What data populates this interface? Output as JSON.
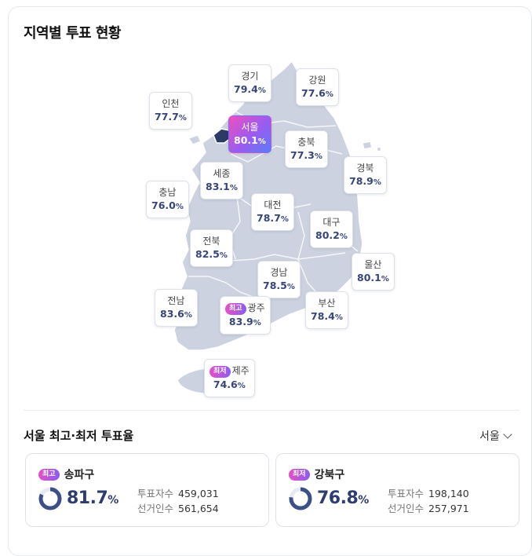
{
  "title": "지역별 투표 현황",
  "regions": [
    {
      "name": "경기",
      "value": "79.4",
      "badge": ""
    },
    {
      "name": "강원",
      "value": "77.6",
      "badge": ""
    },
    {
      "name": "인천",
      "value": "77.7",
      "badge": ""
    },
    {
      "name": "서울",
      "value": "80.1",
      "badge": ""
    },
    {
      "name": "충북",
      "value": "77.3",
      "badge": ""
    },
    {
      "name": "경북",
      "value": "78.9",
      "badge": ""
    },
    {
      "name": "세종",
      "value": "83.1",
      "badge": ""
    },
    {
      "name": "충남",
      "value": "76.0",
      "badge": ""
    },
    {
      "name": "대전",
      "value": "78.7",
      "badge": ""
    },
    {
      "name": "대구",
      "value": "80.2",
      "badge": ""
    },
    {
      "name": "전북",
      "value": "82.5",
      "badge": ""
    },
    {
      "name": "울산",
      "value": "80.1",
      "badge": ""
    },
    {
      "name": "경남",
      "value": "78.5",
      "badge": ""
    },
    {
      "name": "전남",
      "value": "83.6",
      "badge": ""
    },
    {
      "name": "광주",
      "value": "83.9",
      "badge": "최고"
    },
    {
      "name": "부산",
      "value": "78.4",
      "badge": ""
    },
    {
      "name": "제주",
      "value": "74.6",
      "badge": "최저"
    }
  ],
  "selected_region": "서울",
  "percent_unit": "%",
  "section": {
    "title": "서울 최고·최저 투표율",
    "dropdown_value": "서울"
  },
  "cards": [
    {
      "badge": "최고",
      "district": "송파구",
      "rate": "81.7",
      "rate_fraction": 0.817,
      "voters_label": "투표자수",
      "voters": "459,031",
      "electors_label": "선거인수",
      "electors": "561,654"
    },
    {
      "badge": "최저",
      "district": "강북구",
      "rate": "76.8",
      "rate_fraction": 0.768,
      "voters_label": "투표자수",
      "voters": "198,140",
      "electors_label": "선거인수",
      "electors": "257,971"
    }
  ],
  "colors": {
    "map_fill": "#ccd2df",
    "map_border": "#ffffff",
    "selected_fill": "#2c3a66",
    "donut_track": "#e6e9f1",
    "donut_fill": "#3d4f86"
  }
}
